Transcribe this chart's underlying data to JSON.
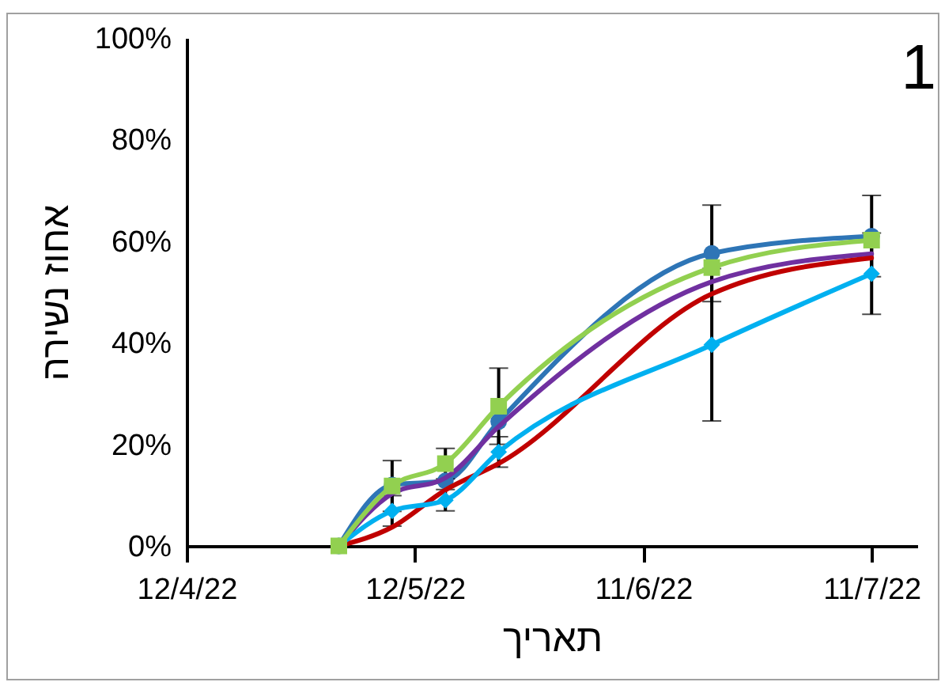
{
  "chart_data": {
    "type": "line",
    "xlabel": "תאריך",
    "ylabel": "אחוז נשירה",
    "annotations": [
      "1"
    ],
    "x": [
      "2022-05-02",
      "2022-05-09",
      "2022-05-16",
      "2022-05-23",
      "2022-06-20",
      "2022-07-11"
    ],
    "series": [
      {
        "color": "#2e75b6",
        "marker": "circle",
        "values": [
          0,
          12,
          12.8,
          24.5,
          57.6,
          61
        ],
        "errors": [
          null,
          null,
          null,
          null,
          9.5,
          8
        ]
      },
      {
        "color": "#7030a0",
        "marker": "none",
        "values": [
          0,
          10.3,
          13.4,
          23.5,
          52,
          57.5
        ]
      },
      {
        "color": "#c00000",
        "marker": "none",
        "values": [
          0,
          3.7,
          11,
          16.2,
          49.6,
          56.7
        ]
      },
      {
        "color": "#00b0f0",
        "marker": "diamond",
        "values": [
          0,
          6.9,
          9,
          18.5,
          39.6,
          53.6
        ],
        "errors": [
          null,
          3,
          2.1,
          3,
          15,
          8
        ]
      },
      {
        "color": "#92d050",
        "marker": "square",
        "values": [
          0,
          11.8,
          16.2,
          27.5,
          54.8,
          60.2
        ],
        "errors": [
          null,
          5,
          3,
          7.5,
          null,
          null
        ]
      }
    ],
    "xlim": [
      "2022-04-12",
      "2022-07-17"
    ],
    "xticks": [
      {
        "value": "2022-04-12",
        "label": "12/4/22"
      },
      {
        "value": "2022-05-12",
        "label": "12/5/22"
      },
      {
        "value": "2022-06-11",
        "label": "11/6/22"
      },
      {
        "value": "2022-07-11",
        "label": "11/7/22"
      }
    ],
    "ylim": [
      0,
      100
    ],
    "yticks": [
      {
        "value": 0,
        "label": "0%"
      },
      {
        "value": 20,
        "label": "20%"
      },
      {
        "value": 40,
        "label": "40%"
      },
      {
        "value": 60,
        "label": "60%"
      },
      {
        "value": 80,
        "label": "80%"
      },
      {
        "value": 100,
        "label": "100%"
      }
    ],
    "grid": false,
    "line_style": "solid"
  }
}
